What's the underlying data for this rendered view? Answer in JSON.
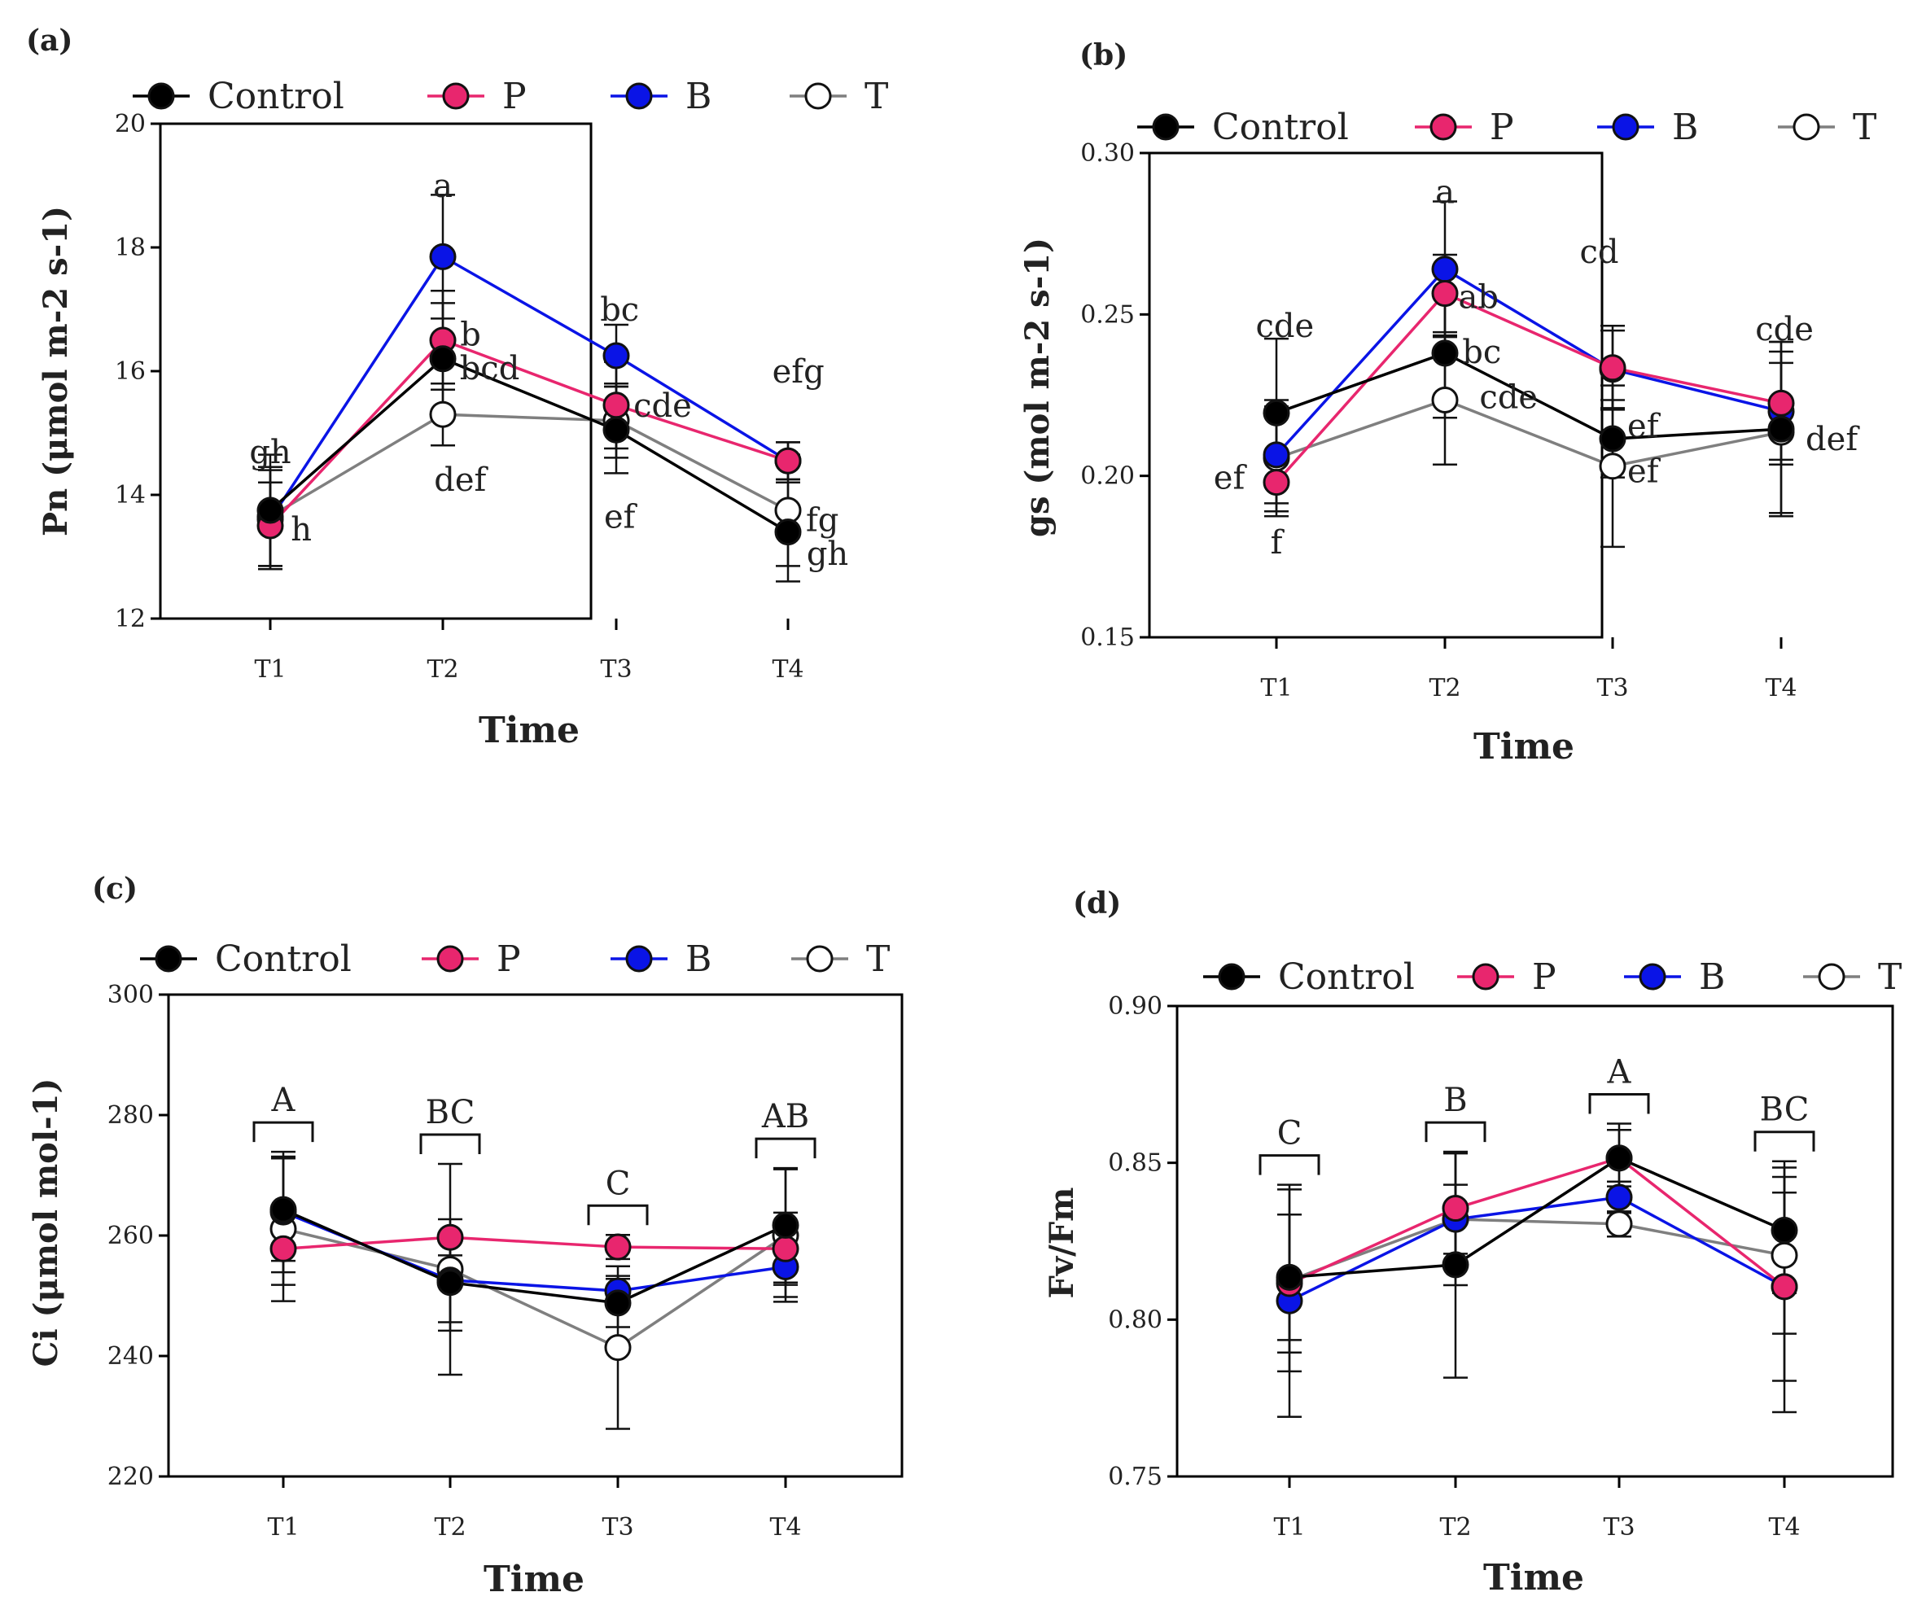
{
  "colors": {
    "Control": "#000000",
    "P": "#e8266e",
    "B": "#0a14e6",
    "T": "#7f7f7f",
    "axis": "#000000"
  },
  "legend": {
    "items": [
      {
        "key": "Control",
        "label": "Control",
        "fill": "#000000",
        "line": "#000000"
      },
      {
        "key": "P",
        "label": "P",
        "fill": "#e8266e",
        "line": "#e8266e"
      },
      {
        "key": "B",
        "label": "B",
        "fill": "#0a14e6",
        "line": "#0a14e6"
      },
      {
        "key": "T",
        "label": "T",
        "fill": "#ffffff",
        "line": "#7f7f7f"
      }
    ]
  },
  "chart_data": [
    {
      "panel": "(a)",
      "type": "line",
      "xlabel": "Time",
      "ylabel": "Pn (μmol m-2 s-1)",
      "categories": [
        "T1",
        "T2",
        "T3",
        "T4"
      ],
      "ylim": [
        12,
        20
      ],
      "yticks": [
        12,
        14,
        16,
        18,
        20
      ],
      "series": [
        {
          "name": "Control",
          "values": [
            13.75,
            16.2,
            15.05,
            13.4
          ],
          "err": [
            0.9,
            0.9,
            0.7,
            0.8
          ]
        },
        {
          "name": "P",
          "values": [
            13.5,
            16.5,
            15.45,
            14.55
          ],
          "err": [
            0.7,
            0.8,
            0.7,
            0.3
          ]
        },
        {
          "name": "B",
          "values": [
            13.6,
            17.85,
            16.25,
            14.55
          ],
          "err": [
            0.8,
            1.0,
            0.5,
            0.3
          ]
        },
        {
          "name": "T",
          "values": [
            13.65,
            15.3,
            15.2,
            13.75
          ],
          "err": [
            0.8,
            0.5,
            0.6,
            0.9
          ]
        }
      ],
      "annotations": [
        {
          "text": "gh",
          "x": 1,
          "y": 14.7
        },
        {
          "text": "h",
          "x": 1.18,
          "y": 13.45
        },
        {
          "text": "a",
          "x": 2,
          "y": 19.0
        },
        {
          "text": "b",
          "x": 2.16,
          "y": 16.6
        },
        {
          "text": "bcd",
          "x": 2.27,
          "y": 16.05
        },
        {
          "text": "def",
          "x": 2.1,
          "y": 14.25
        },
        {
          "text": "bc",
          "x": 3.02,
          "y": 17.0
        },
        {
          "text": "cde",
          "x": 3.27,
          "y": 15.45
        },
        {
          "text": "ef",
          "x": 3.02,
          "y": 13.65
        },
        {
          "text": "efg",
          "x": 4.06,
          "y": 16.0
        },
        {
          "text": "fg",
          "x": 4.2,
          "y": 13.6
        },
        {
          "text": "gh",
          "x": 4.23,
          "y": 13.05
        }
      ]
    },
    {
      "panel": "(b)",
      "type": "line",
      "xlabel": "Time",
      "ylabel": "gs (mol m-2 s-1)",
      "categories": [
        "T1",
        "T2",
        "T3",
        "T4"
      ],
      "ylim": [
        0.15,
        0.3
      ],
      "yticks": [
        "0.15",
        "0.20",
        "0.25",
        "0.30"
      ],
      "series": [
        {
          "name": "Control",
          "values": [
            0.2195,
            0.238,
            0.2115,
            0.2145
          ],
          "err": [
            0.023,
            0.02,
            0.012,
            0.027
          ]
        },
        {
          "name": "P",
          "values": [
            0.198,
            0.2565,
            0.2335,
            0.2225
          ],
          "err": [
            0.009,
            0.012,
            0.013,
            0.019
          ]
        },
        {
          "name": "B",
          "values": [
            0.2065,
            0.264,
            0.233,
            0.22
          ],
          "err": [
            0.015,
            0.021,
            0.012,
            0.015
          ]
        },
        {
          "name": "T",
          "values": [
            0.2055,
            0.2235,
            0.203,
            0.2135
          ],
          "err": [
            0.018,
            0.02,
            0.025,
            0.025
          ]
        }
      ],
      "annotations": [
        {
          "text": "cde",
          "x": 1.05,
          "y": 0.2465
        },
        {
          "text": "ef",
          "x": 0.72,
          "y": 0.1995
        },
        {
          "text": "f",
          "x": 1,
          "y": 0.1795
        },
        {
          "text": "a",
          "x": 2,
          "y": 0.288
        },
        {
          "text": "ab",
          "x": 2.2,
          "y": 0.2555
        },
        {
          "text": "bc",
          "x": 2.22,
          "y": 0.2385
        },
        {
          "text": "cde",
          "x": 2.38,
          "y": 0.2245
        },
        {
          "text": "cd",
          "x": 2.92,
          "y": 0.2695
        },
        {
          "text": "ef",
          "x": 3.18,
          "y": 0.2155
        },
        {
          "text": "ef",
          "x": 3.18,
          "y": 0.2015
        },
        {
          "text": "cde",
          "x": 4.02,
          "y": 0.2455
        },
        {
          "text": "def",
          "x": 4.3,
          "y": 0.2115
        }
      ]
    },
    {
      "panel": "(c)",
      "type": "line",
      "xlabel": "Time",
      "ylabel": "Ci (μmol mol-1)",
      "categories": [
        "T1",
        "T2",
        "T3",
        "T4"
      ],
      "ylim": [
        220,
        300
      ],
      "yticks": [
        220,
        240,
        260,
        280,
        300
      ],
      "series": [
        {
          "name": "Control",
          "values": [
            264.3,
            252.2,
            248.8,
            261.7
          ],
          "err": [
            8.5,
            8.0,
            4.0,
            9.5
          ]
        },
        {
          "name": "P",
          "values": [
            257.8,
            259.7,
            258.1,
            257.8
          ],
          "err": [
            6.0,
            3.0,
            2.0,
            6.0
          ]
        },
        {
          "name": "B",
          "values": [
            263.9,
            252.6,
            250.8,
            254.8
          ],
          "err": [
            10.0,
            7.0,
            2.5,
            5.0
          ]
        },
        {
          "name": "T",
          "values": [
            261.1,
            254.4,
            241.4,
            260.0
          ],
          "err": [
            12.0,
            17.5,
            13.5,
            11.0
          ]
        }
      ],
      "groups": [
        "A",
        "BC",
        "C",
        "AB"
      ]
    },
    {
      "panel": "(d)",
      "type": "line",
      "xlabel": "Time",
      "ylabel": "Fv/Fm",
      "categories": [
        "T1",
        "T2",
        "T3",
        "T4"
      ],
      "ylim": [
        0.75,
        0.9
      ],
      "yticks": [
        "0.75",
        "0.80",
        "0.85",
        "0.90"
      ],
      "series": [
        {
          "name": "Control",
          "values": [
            0.8135,
            0.8175,
            0.8515,
            0.8285
          ],
          "err": [
            0.02,
            0.036,
            0.011,
            0.02
          ]
        },
        {
          "name": "P",
          "values": [
            0.8115,
            0.8355,
            0.8515,
            0.8105
          ],
          "err": [
            0.022,
            0.018,
            0.009,
            0.03
          ]
        },
        {
          "name": "B",
          "values": [
            0.806,
            0.832,
            0.839,
            0.8105
          ],
          "err": [
            0.037,
            0.021,
            0.005,
            0.04
          ]
        },
        {
          "name": "T",
          "values": [
            0.8125,
            0.832,
            0.8305,
            0.8205
          ],
          "err": [
            0.029,
            0.011,
            0.004,
            0.025
          ]
        }
      ],
      "groups": [
        "C",
        "B",
        "A",
        "BC"
      ]
    }
  ]
}
